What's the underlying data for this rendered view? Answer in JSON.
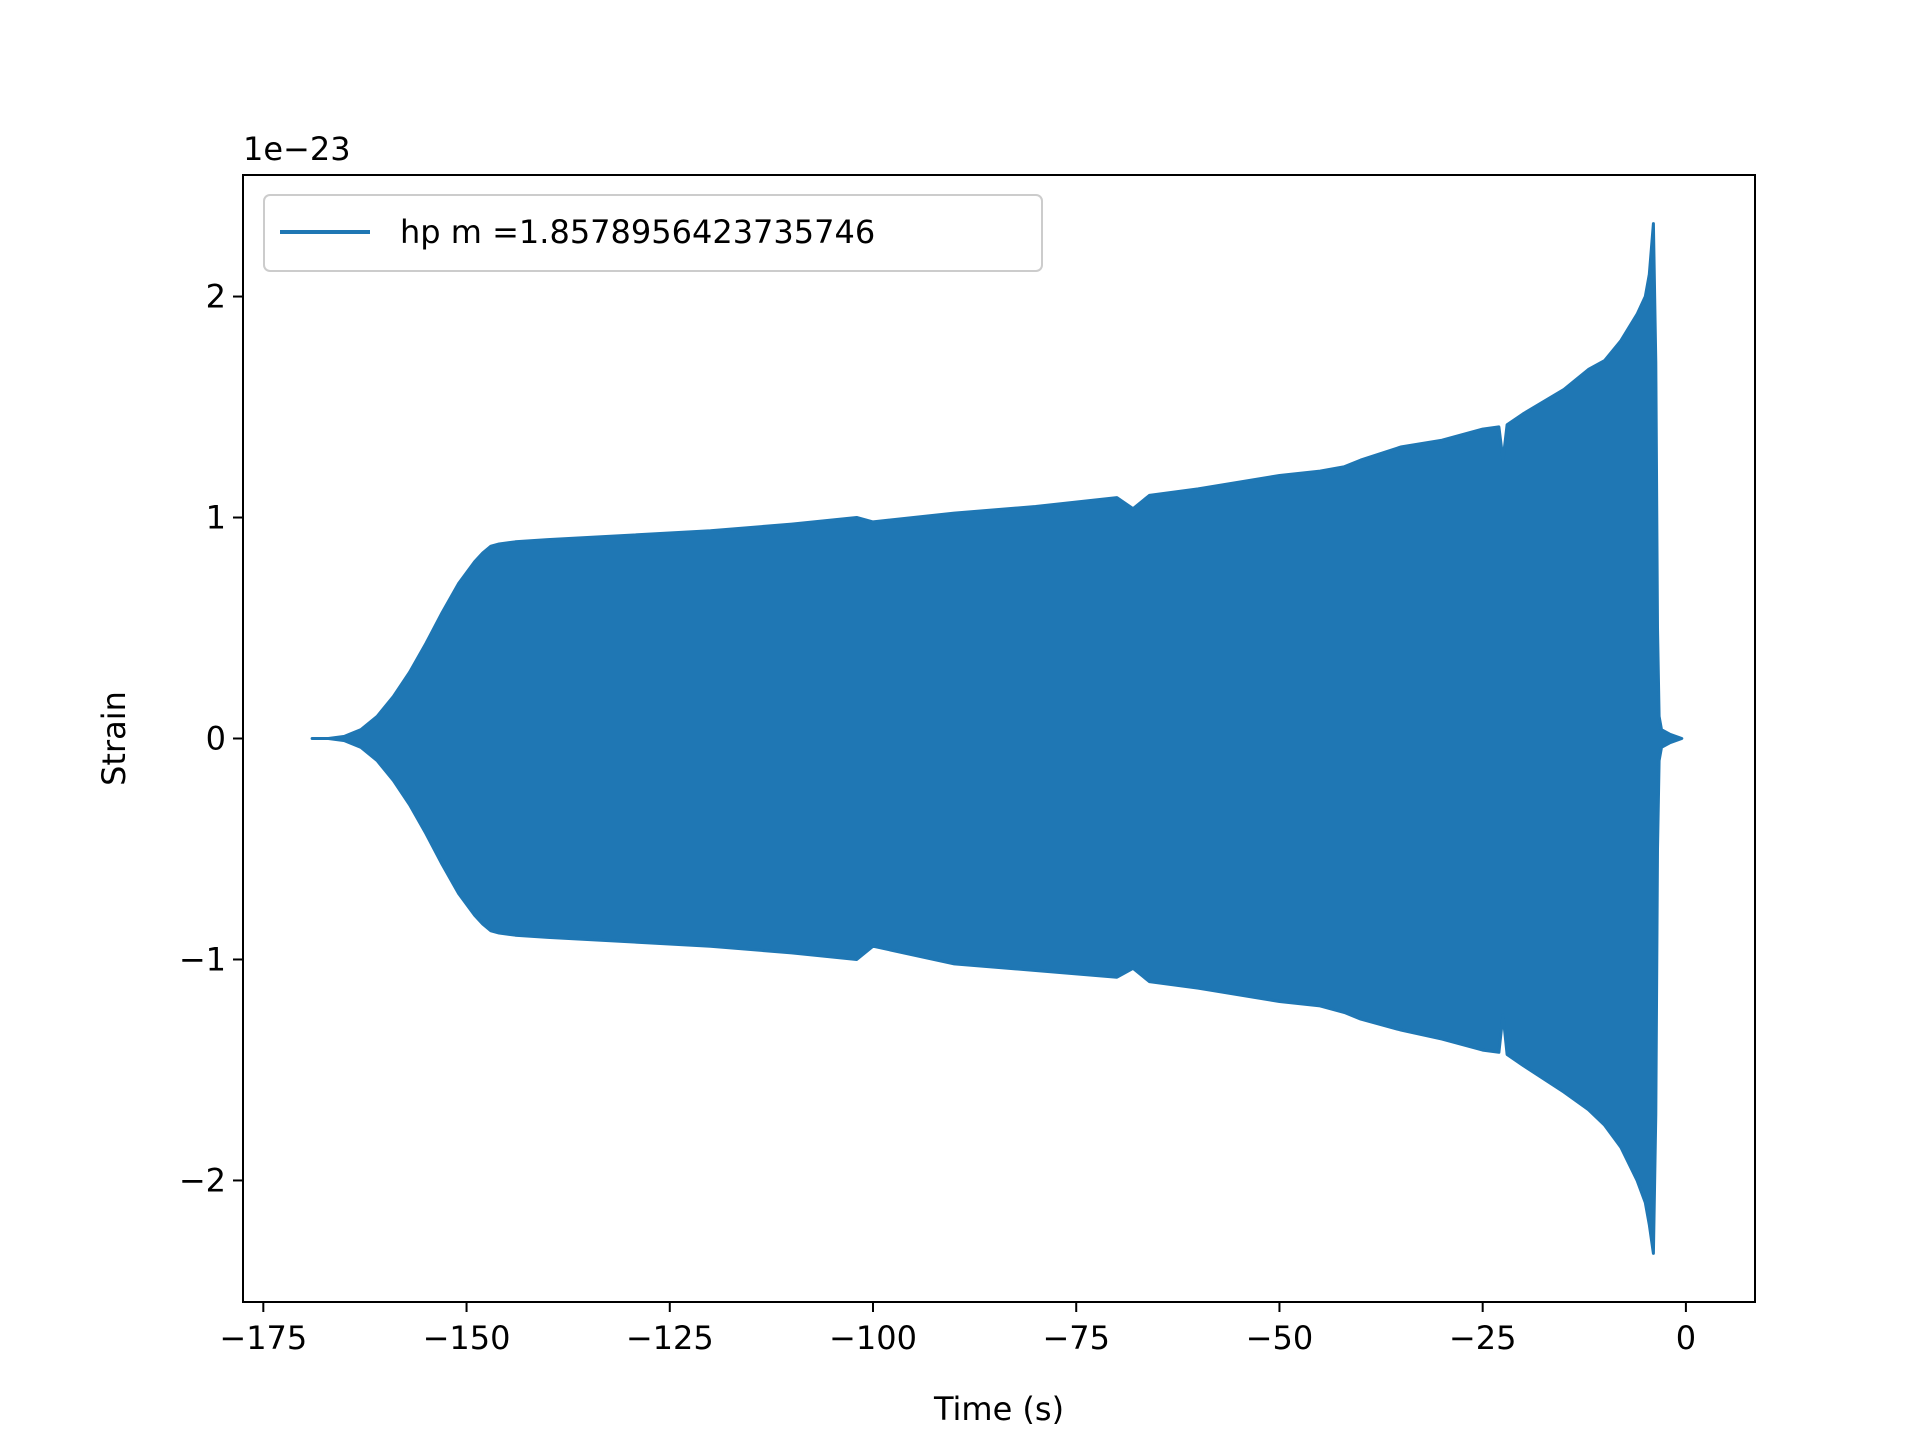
{
  "chart_data": {
    "type": "line",
    "title": "",
    "xlabel": "Time (s)",
    "ylabel": "Strain",
    "y_offset_label": "1e−23",
    "y_scale_exponent": -23,
    "xlim": [
      -177.5,
      8.5
    ],
    "ylim": [
      -2.55,
      2.55
    ],
    "xticks": [
      -175,
      -150,
      -125,
      -100,
      -75,
      -50,
      -25,
      0
    ],
    "xtick_labels": [
      "−175",
      "−150",
      "−125",
      "−100",
      "−75",
      "−50",
      "−25",
      "0"
    ],
    "yticks": [
      -2,
      -1,
      0,
      1,
      2
    ],
    "ytick_labels": [
      "−2",
      "−1",
      "0",
      "1",
      "2"
    ],
    "grid": false,
    "legend_position": "upper-left",
    "series": [
      {
        "name": "hp m =1.8578956423735746",
        "color": "#1f77b4",
        "envelope_time_s": [
          -169,
          -167,
          -165,
          -163,
          -161,
          -159,
          -157,
          -155,
          -153,
          -151,
          -149,
          -148,
          -147,
          -146,
          -144,
          -140,
          -130,
          -120,
          -110,
          -102,
          -100,
          -90,
          -80,
          -70,
          -68,
          -66,
          -60,
          -50,
          -45,
          -42,
          -40,
          -35,
          -30,
          -25,
          -23,
          -22.5,
          -22,
          -20,
          -15,
          -12,
          -10,
          -8,
          -6,
          -5,
          -4.5,
          -4,
          -3.7,
          -3.5,
          -3.3,
          -3,
          -2,
          -0.5
        ],
        "envelope_upper": [
          0.0,
          0.0,
          0.01,
          0.04,
          0.1,
          0.19,
          0.3,
          0.43,
          0.57,
          0.7,
          0.8,
          0.84,
          0.87,
          0.88,
          0.89,
          0.9,
          0.92,
          0.94,
          0.97,
          1.0,
          0.98,
          1.02,
          1.05,
          1.09,
          1.04,
          1.1,
          1.13,
          1.19,
          1.21,
          1.23,
          1.26,
          1.32,
          1.35,
          1.4,
          1.41,
          1.26,
          1.42,
          1.47,
          1.58,
          1.67,
          1.71,
          1.8,
          1.92,
          2.0,
          2.1,
          2.33,
          1.7,
          0.5,
          0.1,
          0.04,
          0.02,
          0.0
        ],
        "envelope_lower": [
          0.0,
          0.0,
          -0.01,
          -0.04,
          -0.1,
          -0.19,
          -0.3,
          -0.43,
          -0.57,
          -0.7,
          -0.8,
          -0.84,
          -0.87,
          -0.88,
          -0.89,
          -0.9,
          -0.92,
          -0.94,
          -0.97,
          -1.0,
          -0.94,
          -1.02,
          -1.05,
          -1.08,
          -1.04,
          -1.1,
          -1.13,
          -1.19,
          -1.21,
          -1.24,
          -1.27,
          -1.32,
          -1.36,
          -1.41,
          -1.42,
          -1.25,
          -1.43,
          -1.48,
          -1.6,
          -1.68,
          -1.75,
          -1.85,
          -2.0,
          -2.1,
          -2.2,
          -2.33,
          -1.7,
          -0.5,
          -0.1,
          -0.04,
          -0.02,
          0.0
        ]
      }
    ]
  }
}
